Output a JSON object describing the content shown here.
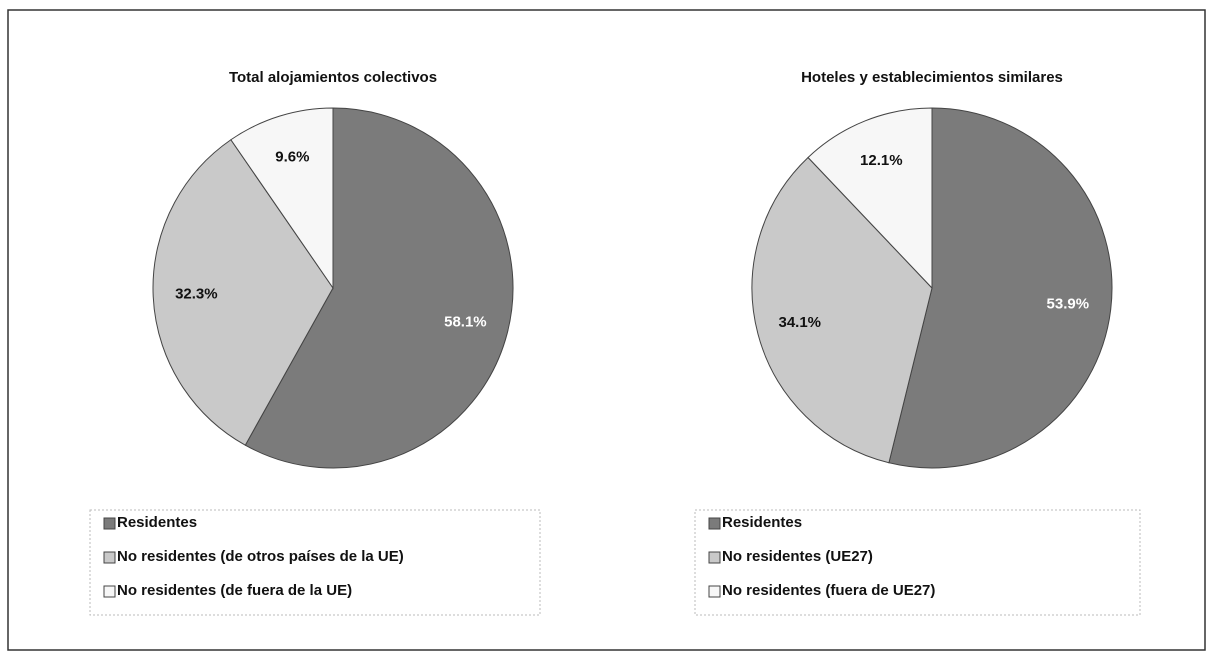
{
  "chart_data": [
    {
      "type": "pie",
      "title": "Total alojamientos colectivos",
      "categories": [
        "Residentes",
        "No residentes (de otros países de la UE)",
        "No residentes (de fuera de la UE)"
      ],
      "values": [
        58.1,
        32.3,
        9.6
      ],
      "value_labels": [
        "58.1%",
        "32.3%",
        "9.6%"
      ],
      "colors": [
        "#7b7b7b",
        "#c9c9c9",
        "#f7f7f7"
      ]
    },
    {
      "type": "pie",
      "title": "Hoteles y establecimientos similares",
      "categories": [
        "Residentes",
        "No residentes (UE27)",
        "No residentes (fuera de UE27)"
      ],
      "values": [
        53.9,
        34.1,
        12.1
      ],
      "value_labels": [
        "53.9%",
        "34.1%",
        "12.1%"
      ],
      "colors": [
        "#7b7b7b",
        "#c9c9c9",
        "#f7f7f7"
      ]
    }
  ]
}
